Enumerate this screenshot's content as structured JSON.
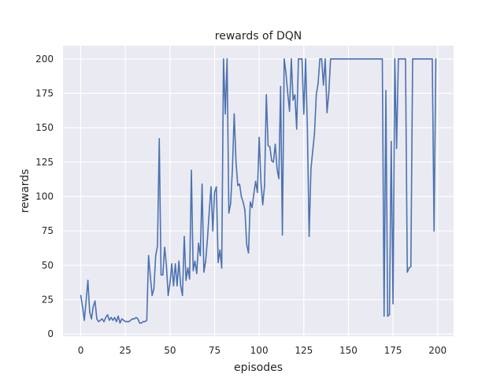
{
  "chart_data": {
    "type": "line",
    "title": "rewards of DQN",
    "xlabel": "episodes",
    "ylabel": "rewards",
    "xlim": [
      -9.95,
      208.95
    ],
    "ylim": [
      -1.65,
      209.65
    ],
    "xticks": [
      0,
      25,
      50,
      75,
      100,
      125,
      150,
      175,
      200
    ],
    "yticks": [
      0,
      25,
      50,
      75,
      100,
      125,
      150,
      175,
      200
    ],
    "grid": true,
    "colors": {
      "background": "#eaeaf2",
      "grid": "#ffffff",
      "line": "#4c72b0"
    },
    "series": [
      {
        "x": [
          0,
          1,
          2,
          3,
          4,
          5,
          6,
          7,
          8,
          9,
          10,
          11,
          12,
          13,
          14,
          15,
          16,
          17,
          18,
          19,
          20,
          21,
          22,
          23,
          24,
          25,
          26,
          27,
          28,
          29,
          30,
          31,
          32,
          33,
          34,
          35,
          36,
          37,
          38,
          39,
          40,
          41,
          42,
          43,
          44,
          45,
          46,
          47,
          48,
          49,
          50,
          51,
          52,
          53,
          54,
          55,
          56,
          57,
          58,
          59,
          60,
          61,
          62,
          63,
          64,
          65,
          66,
          67,
          68,
          69,
          70,
          71,
          72,
          73,
          74,
          75,
          76,
          77,
          78,
          79,
          80,
          81,
          82,
          83,
          84,
          85,
          86,
          87,
          88,
          89,
          90,
          91,
          92,
          93,
          94,
          95,
          96,
          97,
          98,
          99,
          100,
          101,
          102,
          103,
          104,
          105,
          106,
          107,
          108,
          109,
          110,
          111,
          112,
          113,
          114,
          115,
          116,
          117,
          118,
          119,
          120,
          121,
          122,
          123,
          124,
          125,
          126,
          127,
          128,
          129,
          130,
          131,
          132,
          133,
          134,
          135,
          136,
          137,
          138,
          139,
          140,
          141,
          142,
          143,
          144,
          145,
          146,
          147,
          148,
          149,
          150,
          151,
          152,
          153,
          154,
          155,
          156,
          157,
          158,
          159,
          160,
          161,
          162,
          163,
          164,
          165,
          166,
          167,
          168,
          169,
          170,
          171,
          172,
          173,
          174,
          175,
          176,
          177,
          178,
          179,
          180,
          181,
          182,
          183,
          184,
          185,
          186,
          187,
          188,
          189,
          190,
          191,
          192,
          193,
          194,
          195,
          196,
          197,
          198,
          199
        ],
        "y": [
          28,
          20,
          10,
          24,
          39,
          16,
          11,
          20,
          24,
          11,
          9,
          10,
          11,
          9,
          12,
          14,
          10,
          12,
          10,
          12,
          9,
          13,
          8,
          11,
          10,
          9,
          9,
          9,
          10,
          11,
          11,
          12,
          11,
          8,
          8,
          9,
          9,
          10,
          57,
          42,
          28,
          33,
          57,
          64,
          142,
          43,
          43,
          63,
          50,
          28,
          37,
          51,
          35,
          51,
          35,
          53,
          35,
          28,
          71,
          39,
          48,
          40,
          119,
          46,
          53,
          44,
          66,
          57,
          109,
          45,
          53,
          69,
          89,
          107,
          75,
          103,
          107,
          52,
          61,
          48,
          200,
          160,
          200,
          88,
          95,
          120,
          160,
          125,
          108,
          109,
          100,
          96,
          90,
          65,
          59,
          96,
          92,
          102,
          111,
          103,
          143,
          110,
          94,
          108,
          174,
          137,
          136,
          126,
          125,
          138,
          120,
          113,
          180,
          72,
          200,
          190,
          175,
          162,
          200,
          170,
          174,
          149,
          200,
          200,
          200,
          160,
          200,
          150,
          71,
          120,
          133,
          146,
          174,
          182,
          200,
          200,
          181,
          200,
          161,
          175,
          200,
          200,
          200,
          200,
          200,
          200,
          200,
          200,
          200,
          200,
          200,
          200,
          200,
          200,
          200,
          200,
          200,
          200,
          200,
          200,
          200,
          200,
          200,
          200,
          200,
          200,
          200,
          200,
          200,
          200,
          13,
          177,
          13,
          14,
          140,
          22,
          200,
          135,
          200,
          200,
          200,
          200,
          200,
          45,
          48,
          49,
          200,
          200,
          200,
          200,
          200,
          200,
          200,
          200,
          200,
          200,
          200,
          200,
          75,
          200
        ]
      }
    ]
  }
}
